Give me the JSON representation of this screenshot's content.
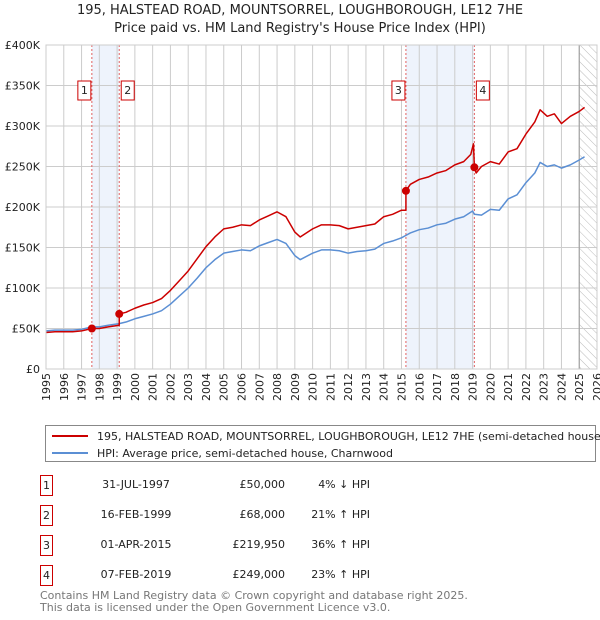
{
  "title": "195, HALSTEAD ROAD, MOUNTSORREL, LOUGHBOROUGH, LE12 7HE",
  "subtitle": "Price paid vs. HM Land Registry's House Price Index (HPI)",
  "chart_data": {
    "type": "line",
    "xlim": [
      1995,
      2026
    ],
    "ylim": [
      0,
      400000
    ],
    "y_ticks": [
      {
        "v": 0,
        "label": "£0"
      },
      {
        "v": 50000,
        "label": "£50K"
      },
      {
        "v": 100000,
        "label": "£100K"
      },
      {
        "v": 150000,
        "label": "£150K"
      },
      {
        "v": 200000,
        "label": "£200K"
      },
      {
        "v": 250000,
        "label": "£250K"
      },
      {
        "v": 300000,
        "label": "£300K"
      },
      {
        "v": 350000,
        "label": "£350K"
      },
      {
        "v": 400000,
        "label": "£400K"
      }
    ],
    "x_ticks": [
      "1995",
      "1996",
      "1997",
      "1998",
      "1999",
      "2000",
      "2001",
      "2002",
      "2003",
      "2004",
      "2005",
      "2006",
      "2007",
      "2008",
      "2009",
      "2010",
      "2011",
      "2012",
      "2013",
      "2014",
      "2015",
      "2016",
      "2017",
      "2018",
      "2019",
      "2020",
      "2021",
      "2022",
      "2023",
      "2024",
      "2025",
      "2026"
    ],
    "grid": true,
    "forecast_hatch_from": 2025.0,
    "series": [
      {
        "name": "195, HALSTEAD ROAD, MOUNTSORREL, LOUGHBOROUGH, LE12 7HE (semi-detached house)",
        "color": "#cc0000",
        "x": [
          1995,
          1995.5,
          1996,
          1996.5,
          1997,
          1997.58,
          1998,
          1998.5,
          1999.12,
          1999.12,
          1999.5,
          2000,
          2000.5,
          2001,
          2001.5,
          2002,
          2002.5,
          2003,
          2003.5,
          2004,
          2004.5,
          2005,
          2005.5,
          2006,
          2006.5,
          2007,
          2007.5,
          2008,
          2008.5,
          2009,
          2009.3,
          2010,
          2010.5,
          2011,
          2011.5,
          2012,
          2012.5,
          2013,
          2013.5,
          2014,
          2014.5,
          2015,
          2015.25,
          2015.25,
          2015.5,
          2016,
          2016.5,
          2017,
          2017.5,
          2018,
          2018.5,
          2018.9,
          2019.05,
          2019.1,
          2019.2,
          2019.5,
          2020,
          2020.5,
          2021,
          2021.5,
          2022,
          2022.5,
          2022.8,
          2023.2,
          2023.6,
          2024,
          2024.5,
          2025,
          2025.3
        ],
        "y": [
          45000,
          46000,
          46000,
          46000,
          47000,
          50000,
          50000,
          52000,
          54000,
          68000,
          70000,
          75000,
          79000,
          82000,
          87000,
          97000,
          109000,
          121000,
          136000,
          151000,
          163000,
          173000,
          175000,
          178000,
          177000,
          184000,
          189000,
          194000,
          188000,
          169000,
          163000,
          173000,
          178000,
          178000,
          177000,
          173000,
          175000,
          177000,
          179000,
          188000,
          191000,
          196000,
          196000,
          219950,
          228000,
          234000,
          237000,
          242000,
          245000,
          252000,
          256000,
          265000,
          278000,
          249000,
          242000,
          250000,
          256000,
          253000,
          268000,
          272000,
          290000,
          305000,
          320000,
          312000,
          315000,
          303000,
          312000,
          318000,
          323000
        ]
      },
      {
        "name": "HPI: Average price, semi-detached house, Charnwood",
        "color": "#5b8fd4",
        "x": [
          1995,
          1995.5,
          1996,
          1996.5,
          1997,
          1997.58,
          1998,
          1998.5,
          1999.12,
          1999.5,
          2000,
          2000.5,
          2001,
          2001.5,
          2002,
          2002.5,
          2003,
          2003.5,
          2004,
          2004.5,
          2005,
          2005.5,
          2006,
          2006.5,
          2007,
          2007.5,
          2008,
          2008.5,
          2009,
          2009.3,
          2010,
          2010.5,
          2011,
          2011.5,
          2012,
          2012.5,
          2013,
          2013.5,
          2014,
          2014.5,
          2015,
          2015.25,
          2015.5,
          2016,
          2016.5,
          2017,
          2017.5,
          2018,
          2018.5,
          2019,
          2019.1,
          2019.5,
          2020,
          2020.5,
          2021,
          2021.5,
          2022,
          2022.5,
          2022.8,
          2023.2,
          2023.6,
          2024,
          2024.5,
          2025,
          2025.3
        ],
        "y": [
          47000,
          48000,
          48000,
          48000,
          49000,
          52000,
          52000,
          54000,
          56000,
          58000,
          62000,
          65000,
          68000,
          72000,
          80000,
          90000,
          100000,
          112000,
          125000,
          135000,
          143000,
          145000,
          147000,
          146000,
          152000,
          156000,
          160000,
          155000,
          140000,
          135000,
          143000,
          147000,
          147000,
          146000,
          143000,
          145000,
          146000,
          148000,
          155000,
          158000,
          162000,
          165000,
          168000,
          172000,
          174000,
          178000,
          180000,
          185000,
          188000,
          195000,
          191000,
          190000,
          197000,
          196000,
          210000,
          215000,
          230000,
          242000,
          255000,
          250000,
          252000,
          248000,
          252000,
          258000,
          262000
        ]
      }
    ],
    "sales": [
      {
        "label": "1",
        "x": 1997.58,
        "y": 50000
      },
      {
        "label": "2",
        "x": 1999.12,
        "y": 68000
      },
      {
        "label": "3",
        "x": 2015.25,
        "y": 219950
      },
      {
        "label": "4",
        "x": 2019.1,
        "y": 249000
      }
    ],
    "shaded_spans": [
      [
        1997.58,
        1999.12
      ],
      [
        2015.25,
        2019.1
      ]
    ]
  },
  "legend": {
    "property": "195, HALSTEAD ROAD, MOUNTSORREL, LOUGHBOROUGH, LE12 7HE (semi-detached house)",
    "hpi": "HPI: Average price, semi-detached house, Charnwood"
  },
  "transactions": [
    {
      "num": "1",
      "date": "31-JUL-1997",
      "price": "£50,000",
      "delta": "4% ↓ HPI"
    },
    {
      "num": "2",
      "date": "16-FEB-1999",
      "price": "£68,000",
      "delta": "21% ↑ HPI"
    },
    {
      "num": "3",
      "date": "01-APR-2015",
      "price": "£219,950",
      "delta": "36% ↑ HPI"
    },
    {
      "num": "4",
      "date": "07-FEB-2019",
      "price": "£249,000",
      "delta": "23% ↑ HPI"
    }
  ],
  "footer": [
    "Contains HM Land Registry data © Crown copyright and database right 2025.",
    "This data is licensed under the Open Government Licence v3.0."
  ]
}
